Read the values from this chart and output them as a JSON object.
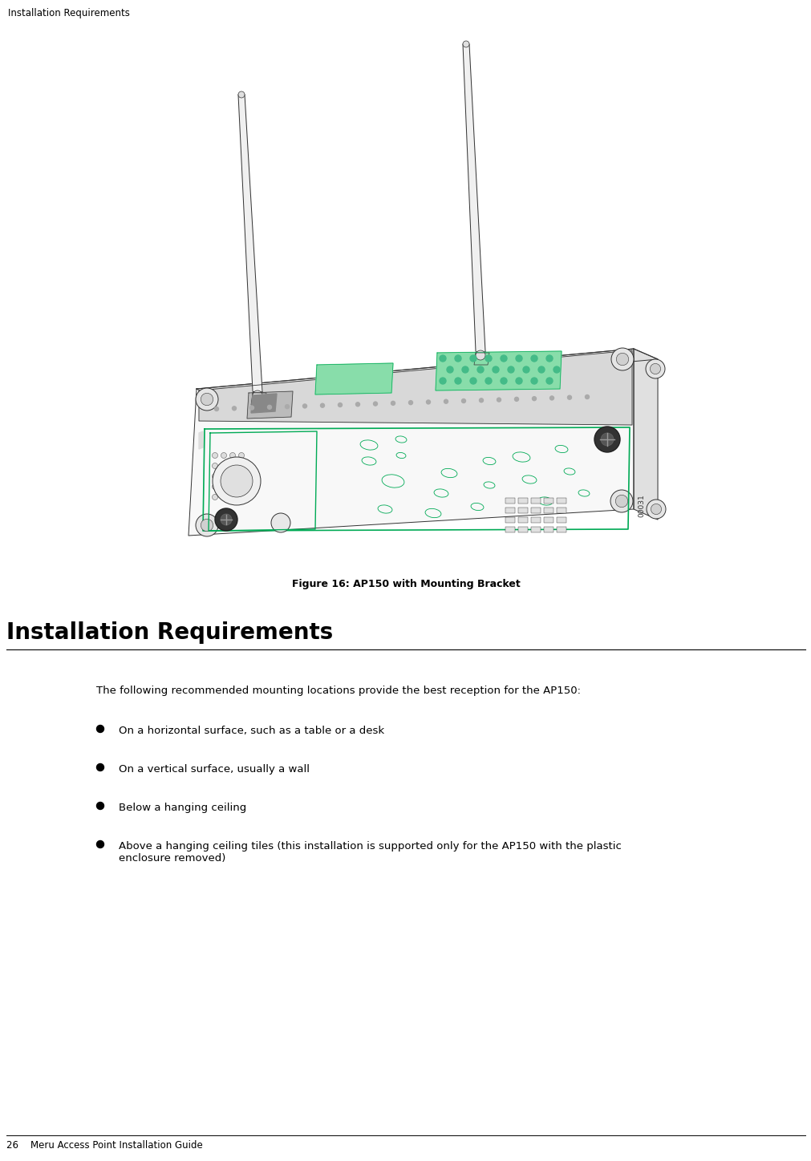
{
  "bg_color": "#ffffff",
  "header_text": "Installation Requirements",
  "header_fontsize": 8.5,
  "figure_caption": "Figure 16: AP150 with Mounting Bracket",
  "figure_caption_fontsize": 9,
  "section_heading": "Installation Requirements",
  "section_heading_fontsize": 20,
  "body_intro": "The following recommended mounting locations provide the best reception for the AP150:",
  "body_intro_fontsize": 9.5,
  "bullet_points": [
    "On a horizontal surface, such as a table or a desk",
    "On a vertical surface, usually a wall",
    "Below a hanging ceiling",
    "Above a hanging ceiling tiles (this installation is supported only for the AP150 with the plastic\nenclosure removed)"
  ],
  "bullet_fontsize": 9.5,
  "footer_text": "26    Meru Access Point Installation Guide",
  "footer_fontsize": 8.5,
  "line_color": "#000000",
  "edge_color": "#333333",
  "green_color": "#00aa55",
  "device_edge": "#555555"
}
